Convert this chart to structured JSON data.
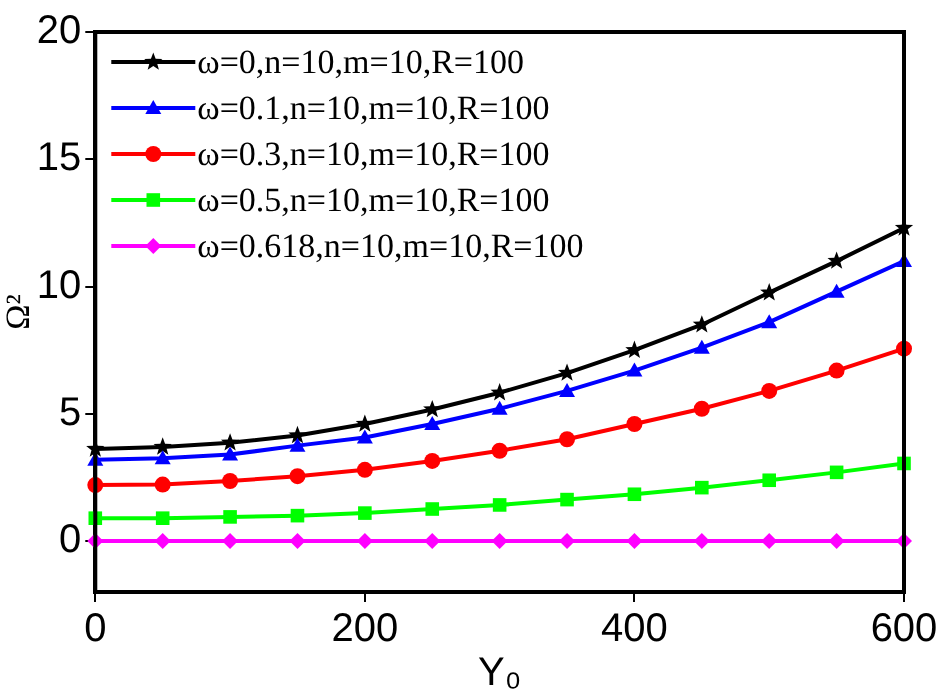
{
  "chart_data": {
    "type": "line",
    "xlabel": "Y₀",
    "ylabel": "Ω²",
    "x": [
      0,
      50,
      100,
      150,
      200,
      250,
      300,
      350,
      400,
      450,
      500,
      550,
      600
    ],
    "xlim": [
      0,
      600
    ],
    "xticks": [
      0,
      200,
      400,
      600
    ],
    "ylim": [
      -2,
      20
    ],
    "yticks": [
      0,
      5,
      10,
      15,
      20
    ],
    "grid": false,
    "legend": "top left",
    "line_style": "solid",
    "series": [
      {
        "name": "ω=0,n=10,m=10,R=100",
        "color": "#000000",
        "marker": "star",
        "values": [
          3.62,
          3.7,
          3.86,
          4.15,
          4.6,
          5.17,
          5.83,
          6.6,
          7.5,
          8.5,
          9.76,
          11.0,
          12.3
        ]
      },
      {
        "name": "ω=0.1,n=10,m=10,R=100",
        "color": "#0000ff",
        "marker": "triangle",
        "values": [
          3.2,
          3.25,
          3.4,
          3.75,
          4.07,
          4.6,
          5.2,
          5.9,
          6.7,
          7.6,
          8.6,
          9.8,
          11.0
        ]
      },
      {
        "name": "ω=0.3,n=10,m=10,R=100",
        "color": "#ff0000",
        "marker": "circle",
        "values": [
          2.2,
          2.22,
          2.36,
          2.55,
          2.8,
          3.15,
          3.55,
          4.0,
          4.6,
          5.2,
          5.9,
          6.7,
          7.56
        ]
      },
      {
        "name": "ω=0.5,n=10,m=10,R=100",
        "color": "#00ff00",
        "marker": "square",
        "values": [
          0.9,
          0.9,
          0.95,
          1.0,
          1.1,
          1.26,
          1.42,
          1.63,
          1.84,
          2.1,
          2.39,
          2.7,
          3.05
        ]
      },
      {
        "name": "ω=0.618,n=10,m=10,R=100",
        "color": "#ff00ff",
        "marker": "diamond",
        "values": [
          0,
          0,
          0,
          0,
          0,
          0,
          0,
          0,
          0,
          0,
          0,
          0,
          0
        ]
      }
    ]
  }
}
